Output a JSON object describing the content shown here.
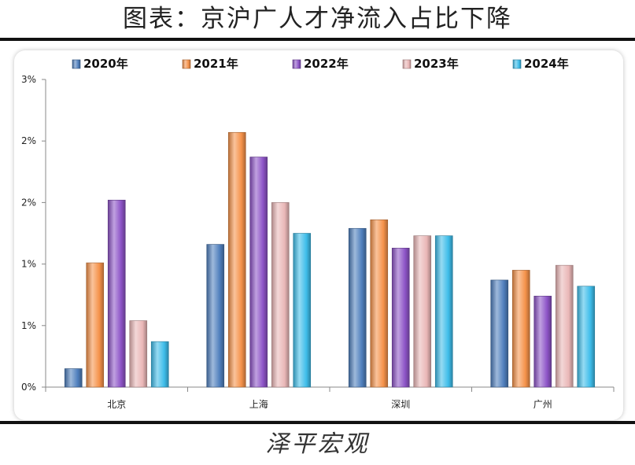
{
  "header": {
    "title": "图表：京沪广人才净流入占比下降"
  },
  "footer": {
    "brand": "泽平宏观"
  },
  "colors": {
    "2020年": "#4f7fbd",
    "2021年": "#f5924a",
    "2022年": "#8d54c7",
    "2023年": "#eab7b7",
    "2024年": "#3ebdea"
  },
  "chart_data": {
    "type": "bar",
    "title": "图表：京沪广人才净流入占比下降",
    "xlabel": "",
    "ylabel": "",
    "categories": [
      "北京",
      "上海",
      "深圳",
      "广州"
    ],
    "series": [
      {
        "name": "2020年",
        "values": [
          0.15,
          1.16,
          1.29,
          0.87
        ]
      },
      {
        "name": "2021年",
        "values": [
          1.01,
          2.07,
          1.36,
          0.95
        ]
      },
      {
        "name": "2022年",
        "values": [
          1.52,
          1.87,
          1.13,
          0.74
        ]
      },
      {
        "name": "2023年",
        "values": [
          0.54,
          1.5,
          1.23,
          0.99
        ]
      },
      {
        "name": "2024年",
        "values": [
          0.37,
          1.25,
          1.23,
          0.82
        ]
      }
    ],
    "ylim": [
      0,
      2.5
    ],
    "yticks": [
      0,
      0.5,
      1,
      1.5,
      2,
      2.5
    ],
    "ytick_labels": [
      "0%",
      "1%",
      "1%",
      "2%",
      "2%",
      "3%"
    ],
    "legend_position": "top",
    "grid": false
  }
}
